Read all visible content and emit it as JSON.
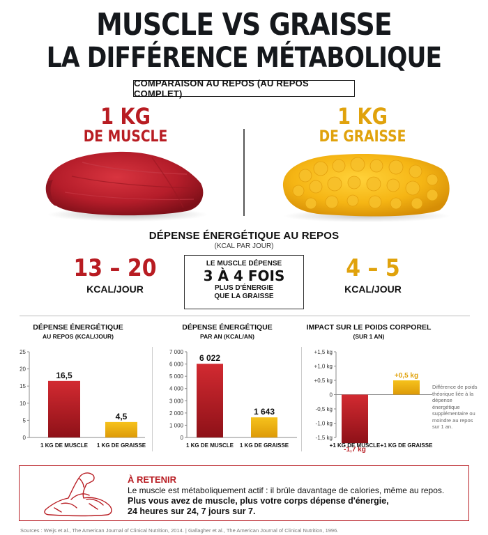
{
  "header": {
    "title_line1": "MUSCLE VS GRAISSE",
    "title_line2": "LA DIFFÉRENCE MÉTABOLIQUE",
    "subtitle": "COMPARAISON AU REPOS (AU REPOS COMPLET)"
  },
  "muscle": {
    "amount": "1 KG",
    "label": "DE MUSCLE",
    "value": "13 – 20",
    "unit": "KCAL/JOUR"
  },
  "fat": {
    "amount": "1 KG",
    "label": "DE GRAISSE",
    "value": "4 – 5",
    "unit": "KCAL/JOUR"
  },
  "energy": {
    "title": "DÉPENSE ÉNERGÉTIQUE AU REPOS",
    "subtitle": "(KCAL PAR JOUR)"
  },
  "comparison": {
    "line1": "LE MUSCLE DÉPENSE",
    "line2": "3 À 4 FOIS",
    "line3": "PLUS D'ÉNERGIE",
    "line4": "QUE LA GRAISSE"
  },
  "colors": {
    "muscle": "#b81c22",
    "fat": "#e0a20c",
    "text": "#15181c"
  },
  "chart_data": [
    {
      "type": "bar",
      "title": "DÉPENSE ÉNERGÉTIQUE",
      "subtitle": "AU REPOS (KCAL/JOUR)",
      "categories": [
        "1 KG DE MUSCLE",
        "1 KG DE GRAISSE"
      ],
      "values": [
        16.5,
        4.5
      ],
      "value_labels": [
        "16,5",
        "4,5"
      ],
      "ylim": [
        0,
        25
      ],
      "yticks": [
        0,
        5,
        10,
        15,
        20,
        25
      ],
      "ytick_labels": [
        "0",
        "5",
        "10",
        "15",
        "20",
        "25"
      ]
    },
    {
      "type": "bar",
      "title": "DÉPENSE ÉNERGÉTIQUE",
      "subtitle": "PAR AN (KCAL/AN)",
      "categories": [
        "1 KG DE MUSCLE",
        "1 KG DE GRAISSE"
      ],
      "values": [
        6022,
        1643
      ],
      "value_labels": [
        "6 022",
        "1 643"
      ],
      "ylim": [
        0,
        7000
      ],
      "yticks": [
        0,
        1000,
        2000,
        3000,
        4000,
        5000,
        6000,
        7000
      ],
      "ytick_labels": [
        "0",
        "1 000",
        "2 000",
        "3 000",
        "4 000",
        "5 000",
        "6 000",
        "7 000"
      ]
    },
    {
      "type": "bar",
      "title": "IMPACT SUR LE POIDS CORPOREL",
      "subtitle": "(SUR 1 AN)",
      "categories": [
        "+1 KG DE MUSCLE",
        "+1 KG DE GRAISSE"
      ],
      "values": [
        -1.7,
        0.5
      ],
      "value_labels": [
        "-1,7 kg",
        "+0,5 kg"
      ],
      "ylim": [
        -1.5,
        1.5
      ],
      "yticks": [
        -1.5,
        -1.0,
        -0.5,
        0,
        0.5,
        1.0,
        1.5
      ],
      "ytick_labels": [
        "-1,5 kg",
        "-1,0 kg",
        "-0,5 kg",
        "0",
        "+0,5 kg",
        "+1,0 kg",
        "+1,5 kg"
      ],
      "note": "Différence de poids théorique liée à la dépense énergétique supplémentaire ou moindre au repos sur 1 an."
    }
  ],
  "retain": {
    "title": "À RETENIR",
    "line1": "Le muscle est métaboliquement actif : il brûle davantage de calories, même au repos.",
    "line2": "Plus vous avez de muscle, plus votre corps dépense d'énergie,",
    "line3": "24 heures sur 24, 7 jours sur 7."
  },
  "sources": "Sources : Weijs et al., The American Journal of Clinical Nutrition, 2014. | Gallagher et al., The American Journal of Clinical Nutrition, 1996."
}
